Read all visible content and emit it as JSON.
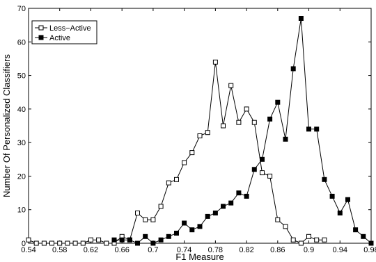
{
  "chart_data": {
    "type": "line",
    "title": "",
    "xlabel": "F1 Measure",
    "ylabel": "Number Of Personalized Classifiers",
    "xlim": [
      0.54,
      0.98
    ],
    "ylim": [
      0,
      70
    ],
    "x_ticks": [
      "0.54",
      "0.58",
      "0.62",
      "0.66",
      "0.7",
      "0.74",
      "0.78",
      "0.82",
      "0.86",
      "0.9",
      "0.94",
      "0.98"
    ],
    "x_tick_values": [
      0.54,
      0.58,
      0.62,
      0.66,
      0.7,
      0.74,
      0.78,
      0.82,
      0.86,
      0.9,
      0.94,
      0.98
    ],
    "y_ticks": [
      "0",
      "10",
      "20",
      "30",
      "40",
      "50",
      "60",
      "70"
    ],
    "y_tick_values": [
      0,
      10,
      20,
      30,
      40,
      50,
      60,
      70
    ],
    "grid": false,
    "legend_position": "top-left",
    "series": [
      {
        "name": "Less−Active",
        "marker": "open-square",
        "color": "#000000",
        "x": [
          0.54,
          0.55,
          0.56,
          0.57,
          0.58,
          0.59,
          0.6,
          0.61,
          0.62,
          0.63,
          0.64,
          0.65,
          0.66,
          0.67,
          0.68,
          0.69,
          0.7,
          0.71,
          0.72,
          0.73,
          0.74,
          0.75,
          0.76,
          0.77,
          0.78,
          0.79,
          0.8,
          0.81,
          0.82,
          0.83,
          0.84,
          0.85,
          0.86,
          0.87,
          0.88,
          0.89,
          0.9,
          0.91,
          0.92
        ],
        "y": [
          1,
          0,
          0,
          0,
          0,
          0,
          0,
          0,
          1,
          1,
          0,
          0,
          2,
          1,
          9,
          7,
          7,
          11,
          18,
          19,
          24,
          27,
          32,
          33,
          54,
          35,
          47,
          36,
          40,
          36,
          21,
          20,
          7,
          5,
          1,
          0,
          2,
          1,
          1
        ]
      },
      {
        "name": "Active",
        "marker": "filled-square",
        "color": "#000000",
        "x": [
          0.65,
          0.66,
          0.67,
          0.68,
          0.69,
          0.7,
          0.71,
          0.72,
          0.73,
          0.74,
          0.75,
          0.76,
          0.77,
          0.78,
          0.79,
          0.8,
          0.81,
          0.82,
          0.83,
          0.84,
          0.85,
          0.86,
          0.87,
          0.88,
          0.89,
          0.9,
          0.91,
          0.92,
          0.93,
          0.94,
          0.95,
          0.96,
          0.97,
          0.98
        ],
        "y": [
          1,
          1,
          1,
          0,
          2,
          0,
          1,
          2,
          3,
          6,
          4,
          5,
          8,
          9,
          11,
          12,
          15,
          14,
          22,
          25,
          37,
          42,
          31,
          52,
          67,
          34,
          34,
          19,
          14,
          9,
          13,
          4,
          2,
          0
        ]
      }
    ]
  }
}
